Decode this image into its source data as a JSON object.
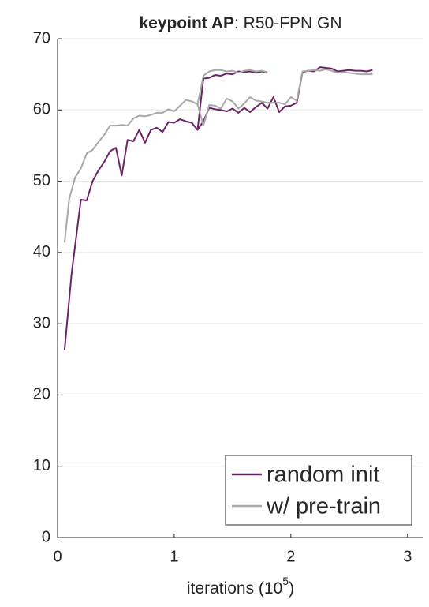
{
  "chart_data": {
    "type": "line",
    "title": {
      "bold": "keypoint AP",
      "rest": ": R50-FPN GN"
    },
    "xlabel": {
      "text": "iterations (10",
      "exponent": "5",
      "close": ")"
    },
    "xlim": [
      0,
      3.13
    ],
    "xticks": [
      0,
      1,
      2,
      3
    ],
    "ylim": [
      0,
      70
    ],
    "yticks": [
      0,
      10,
      20,
      30,
      40,
      50,
      60,
      70
    ],
    "grid": true,
    "legend": "lower-right",
    "series": [
      {
        "name": "random init",
        "color": "#6b2566",
        "x": [
          0.06,
          0.12,
          0.2,
          0.25,
          0.3,
          0.35,
          0.4,
          0.45,
          0.5,
          0.55,
          0.6,
          0.65,
          0.7,
          0.75,
          0.8,
          0.85,
          0.9,
          0.95,
          1.0,
          1.05,
          1.1,
          1.15,
          1.2,
          1.25,
          1.3,
          1.35,
          1.4,
          1.45,
          1.5,
          1.55,
          1.6,
          1.65,
          1.7,
          1.75,
          1.8,
          null,
          1.2,
          1.25,
          1.3,
          1.35,
          1.4,
          1.45,
          1.5,
          1.55,
          1.6,
          1.65,
          1.7,
          1.75,
          1.8,
          1.85,
          1.9,
          1.95,
          2.0,
          2.05,
          2.1,
          2.15,
          2.2,
          2.25,
          2.3,
          2.35,
          2.4,
          2.45,
          2.5,
          2.55,
          2.6,
          2.65,
          2.7
        ],
        "values": [
          26.3,
          37,
          47.4,
          47.3,
          50,
          51.5,
          52.7,
          54.2,
          54.7,
          50.8,
          55.8,
          55.6,
          57.2,
          55.4,
          57.2,
          57.5,
          56.9,
          58.3,
          58.2,
          58.7,
          58.4,
          58.2,
          57.2,
          64.4,
          64.5,
          64.9,
          64.8,
          65.1,
          65.0,
          65.4,
          65.3,
          65.4,
          65.2,
          65.4,
          65.2,
          null,
          57.2,
          58.4,
          60.3,
          60.1,
          60.0,
          59.8,
          60.2,
          59.6,
          60.3,
          59.7,
          60.4,
          61.0,
          60.2,
          61.8,
          59.7,
          60.5,
          60.6,
          61.0,
          65.3,
          65.5,
          65.4,
          66.0,
          65.9,
          65.8,
          65.4,
          65.5,
          65.6,
          65.5,
          65.5,
          65.4,
          65.6
        ]
      },
      {
        "name": "w/ pre-train",
        "color": "#a8a8a8",
        "x": [
          0.06,
          0.1,
          0.15,
          0.2,
          0.25,
          0.3,
          0.35,
          0.4,
          0.45,
          0.5,
          0.55,
          0.6,
          0.65,
          0.7,
          0.75,
          0.8,
          0.85,
          0.9,
          0.95,
          1.0,
          1.05,
          1.1,
          1.15,
          1.2,
          1.25,
          1.3,
          1.35,
          1.4,
          1.45,
          1.5,
          1.55,
          1.6,
          1.65,
          1.7,
          1.75,
          1.8,
          null,
          1.2,
          1.25,
          1.3,
          1.35,
          1.4,
          1.45,
          1.5,
          1.55,
          1.6,
          1.65,
          1.7,
          1.75,
          1.8,
          1.85,
          1.9,
          1.95,
          2.0,
          2.05,
          2.1,
          2.15,
          2.2,
          2.25,
          2.3,
          2.35,
          2.4,
          2.45,
          2.5,
          2.55,
          2.6,
          2.65,
          2.7
        ],
        "values": [
          41.4,
          47.5,
          50.5,
          51.8,
          53.9,
          54.4,
          55.5,
          56.5,
          57.8,
          57.8,
          57.9,
          57.8,
          58.8,
          59.2,
          59.1,
          59.3,
          59.6,
          59.6,
          60.1,
          59.8,
          60.6,
          61.4,
          61.2,
          60.8,
          64.8,
          65.4,
          65.6,
          65.6,
          65.4,
          65.5,
          65.2,
          65.5,
          65.6,
          65.4,
          65.5,
          65.3,
          null,
          60.8,
          57.8,
          60.7,
          60.6,
          60.2,
          61.6,
          61.2,
          60.2,
          60.9,
          61.8,
          61.3,
          61.2,
          61.0,
          61.0,
          61.0,
          60.8,
          61.8,
          61.3,
          65.4,
          65.5,
          65.6,
          65.5,
          65.7,
          65.5,
          65.2,
          65.3,
          65.2,
          65.1,
          65.0,
          65.0,
          65.0
        ]
      }
    ]
  }
}
